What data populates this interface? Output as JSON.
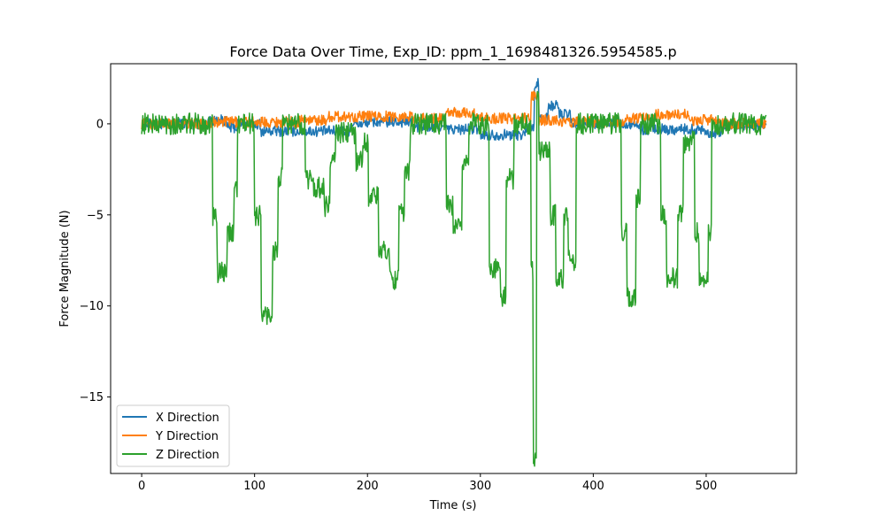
{
  "chart_data": {
    "type": "line",
    "title": "Force Data Over Time, Exp_ID: ppm_1_1698481326.5954585.p",
    "xlabel": "Time (s)",
    "ylabel": "Force Magnitude (N)",
    "xlim": [
      -27.5,
      580
    ],
    "ylim": [
      -19.2,
      3.3
    ],
    "x_ticks": [
      0,
      100,
      200,
      300,
      400,
      500
    ],
    "y_ticks": [
      0,
      -5,
      -10,
      -15
    ],
    "grid": false,
    "legend_position": "lower-left",
    "sample_step_s": 0.5,
    "duration_s": 553,
    "series": [
      {
        "name": "X Direction",
        "color": "#1f77b4",
        "noise_amplitude": 0.3,
        "segments": [
          [
            0,
            60,
            0.0
          ],
          [
            60,
            75,
            0.2
          ],
          [
            75,
            85,
            -0.2
          ],
          [
            85,
            105,
            0.0
          ],
          [
            105,
            150,
            -0.4
          ],
          [
            150,
            185,
            -0.4
          ],
          [
            185,
            200,
            0.0
          ],
          [
            200,
            240,
            0.1
          ],
          [
            240,
            270,
            -0.2
          ],
          [
            270,
            300,
            -0.3
          ],
          [
            300,
            340,
            -0.6
          ],
          [
            340,
            348,
            -0.2
          ],
          [
            348,
            352,
            2.2
          ],
          [
            352,
            360,
            0.3
          ],
          [
            360,
            370,
            1.0
          ],
          [
            370,
            380,
            0.5
          ],
          [
            380,
            440,
            0.0
          ],
          [
            440,
            470,
            -0.3
          ],
          [
            470,
            500,
            -0.3
          ],
          [
            500,
            515,
            -0.5
          ],
          [
            515,
            553,
            -0.1
          ]
        ]
      },
      {
        "name": "Y Direction",
        "color": "#ff7f0e",
        "noise_amplitude": 0.3,
        "segments": [
          [
            0,
            60,
            0.0
          ],
          [
            60,
            90,
            0.1
          ],
          [
            90,
            140,
            0.1
          ],
          [
            140,
            165,
            0.2
          ],
          [
            165,
            190,
            0.4
          ],
          [
            190,
            240,
            0.4
          ],
          [
            240,
            270,
            0.3
          ],
          [
            270,
            295,
            0.6
          ],
          [
            295,
            330,
            0.3
          ],
          [
            330,
            345,
            0.3
          ],
          [
            345,
            352,
            1.5
          ],
          [
            352,
            370,
            0.2
          ],
          [
            370,
            430,
            0.1
          ],
          [
            430,
            455,
            0.3
          ],
          [
            455,
            485,
            0.5
          ],
          [
            485,
            510,
            0.2
          ],
          [
            510,
            553,
            0.0
          ]
        ]
      },
      {
        "name": "Z Direction",
        "color": "#2ca02c",
        "noise_amplitude": 0.6,
        "segments": [
          [
            0,
            63,
            0.0
          ],
          [
            63,
            67,
            -5.0
          ],
          [
            67,
            76,
            -8.2
          ],
          [
            76,
            82,
            -6.0
          ],
          [
            82,
            85,
            -3.5
          ],
          [
            85,
            100,
            0.0
          ],
          [
            100,
            106,
            -5.0
          ],
          [
            106,
            116,
            -10.5
          ],
          [
            116,
            121,
            -7.0
          ],
          [
            121,
            125,
            -3.0
          ],
          [
            125,
            145,
            0.0
          ],
          [
            145,
            152,
            -3.0
          ],
          [
            152,
            162,
            -3.5
          ],
          [
            162,
            167,
            -4.5
          ],
          [
            167,
            172,
            -2.0
          ],
          [
            172,
            190,
            -0.5
          ],
          [
            190,
            196,
            -2.0
          ],
          [
            196,
            201,
            -1.0
          ],
          [
            201,
            210,
            -4.0
          ],
          [
            210,
            220,
            -7.0
          ],
          [
            220,
            228,
            -8.5
          ],
          [
            228,
            233,
            -5.0
          ],
          [
            233,
            238,
            -2.5
          ],
          [
            238,
            270,
            0.0
          ],
          [
            270,
            276,
            -4.5
          ],
          [
            276,
            284,
            -5.8
          ],
          [
            284,
            290,
            -2.0
          ],
          [
            290,
            308,
            0.0
          ],
          [
            308,
            318,
            -8.0
          ],
          [
            318,
            323,
            -9.5
          ],
          [
            323,
            330,
            -3.0
          ],
          [
            330,
            345,
            0.0
          ],
          [
            345,
            347,
            -8.0
          ],
          [
            347,
            350,
            -18.2
          ],
          [
            350,
            352,
            1.8
          ],
          [
            352,
            362,
            -1.5
          ],
          [
            362,
            367,
            -5.0
          ],
          [
            367,
            374,
            -8.5
          ],
          [
            374,
            378,
            -5.0
          ],
          [
            378,
            385,
            -7.5
          ],
          [
            385,
            425,
            0.0
          ],
          [
            425,
            430,
            -6.0
          ],
          [
            430,
            438,
            -9.5
          ],
          [
            438,
            442,
            -4.0
          ],
          [
            442,
            460,
            0.0
          ],
          [
            460,
            465,
            -5.0
          ],
          [
            465,
            475,
            -8.5
          ],
          [
            475,
            480,
            -5.0
          ],
          [
            480,
            490,
            -1.0
          ],
          [
            490,
            494,
            -6.0
          ],
          [
            494,
            502,
            -8.5
          ],
          [
            502,
            505,
            -6.0
          ],
          [
            505,
            520,
            0.0
          ],
          [
            520,
            553,
            0.0
          ]
        ]
      }
    ]
  }
}
